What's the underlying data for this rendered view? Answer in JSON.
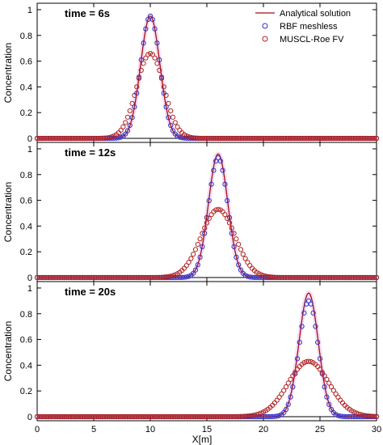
{
  "chart_data": {
    "type": "line",
    "xlabel": "X[m]",
    "ylabel": "Concentration",
    "xlim": [
      0,
      30
    ],
    "ylim": [
      0,
      1.05
    ],
    "x_ticks": [
      "0",
      "5",
      "10",
      "15",
      "20",
      "25",
      "30"
    ],
    "y_ticks": [
      "0",
      "0.2",
      "0.4",
      "0.6",
      "0.8",
      "1"
    ],
    "colors": {
      "analytical": "#a01010",
      "rbf": "#3030c8",
      "muscl": "#b02020",
      "glow": "#f0c8ec"
    },
    "legend": {
      "placement": "top-right",
      "entries": [
        "Analytical solution",
        "RBF meshless",
        "MUSCL-Roe FV"
      ]
    },
    "panels": [
      {
        "label": "time = 6s",
        "series": [
          {
            "name": "Analytical solution",
            "style": "line",
            "shape": "gaussian",
            "peak_x": 10.0,
            "peak_y": 0.95,
            "sigma": 0.85
          },
          {
            "name": "RBF meshless",
            "style": "open-circle",
            "shape": "gaussian",
            "peak_x": 10.0,
            "peak_y": 0.95,
            "sigma": 0.85,
            "step": 0.2
          },
          {
            "name": "MUSCL-Roe FV",
            "style": "open-circle",
            "shape": "gaussian",
            "peak_x": 10.0,
            "peak_y": 0.66,
            "sigma": 1.2,
            "step": 0.2
          }
        ]
      },
      {
        "label": "time = 12s",
        "series": [
          {
            "name": "Analytical solution",
            "style": "line",
            "shape": "gaussian",
            "peak_x": 16.0,
            "peak_y": 0.96,
            "sigma": 0.85
          },
          {
            "name": "RBF meshless",
            "style": "open-circle",
            "shape": "gaussian",
            "peak_x": 16.0,
            "peak_y": 0.93,
            "sigma": 0.85,
            "step": 0.2
          },
          {
            "name": "MUSCL-Roe FV",
            "style": "open-circle",
            "shape": "gaussian",
            "peak_x": 16.0,
            "peak_y": 0.53,
            "sigma": 1.5,
            "step": 0.2
          }
        ]
      },
      {
        "label": "time = 20s",
        "series": [
          {
            "name": "Analytical solution",
            "style": "line",
            "shape": "gaussian",
            "peak_x": 24.0,
            "peak_y": 0.96,
            "sigma": 0.85
          },
          {
            "name": "RBF meshless",
            "style": "open-circle",
            "shape": "gaussian",
            "peak_x": 24.0,
            "peak_y": 0.9,
            "sigma": 0.85,
            "step": 0.2
          },
          {
            "name": "MUSCL-Roe FV",
            "style": "open-circle",
            "shape": "gaussian",
            "peak_x": 24.0,
            "peak_y": 0.43,
            "sigma": 1.8,
            "step": 0.2
          }
        ]
      }
    ]
  }
}
